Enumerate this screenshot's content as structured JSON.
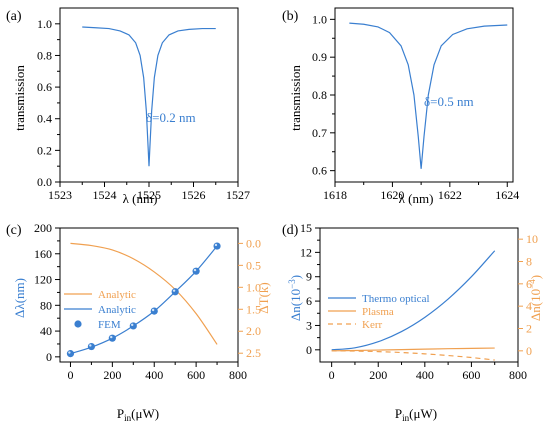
{
  "colors": {
    "blue": "#3a7fd0",
    "orange": "#f0a050",
    "axis": "#000000"
  },
  "chart_data": [
    {
      "type": "line",
      "panel": "(a)",
      "annotation": "δ=0.2 nm",
      "xlabel": "λ (nm)",
      "ylabel": "transmission",
      "xlim": [
        1523,
        1527
      ],
      "ylim": [
        0.0,
        1.1
      ],
      "xticks": [
        1523,
        1524,
        1525,
        1526,
        1527
      ],
      "yticks": [
        0.0,
        0.2,
        0.4,
        0.6,
        0.8,
        1.0
      ],
      "yticklabels": [
        "0.0",
        "0.2",
        "0.4",
        "0.6",
        "0.8",
        "1.0"
      ],
      "series": [
        {
          "color": "#3a7fd0",
          "x": [
            1523.5,
            1523.8,
            1524.1,
            1524.35,
            1524.55,
            1524.7,
            1524.8,
            1524.88,
            1524.94,
            1524.98,
            1525.0,
            1525.02,
            1525.06,
            1525.12,
            1525.2,
            1525.3,
            1525.45,
            1525.65,
            1525.9,
            1526.2,
            1526.5
          ],
          "y": [
            0.98,
            0.975,
            0.97,
            0.955,
            0.93,
            0.88,
            0.8,
            0.66,
            0.45,
            0.22,
            0.1,
            0.22,
            0.45,
            0.66,
            0.8,
            0.88,
            0.93,
            0.955,
            0.965,
            0.97,
            0.97
          ]
        }
      ]
    },
    {
      "type": "line",
      "panel": "(b)",
      "annotation": "δ=0.5 nm",
      "xlabel": "λ (nm)",
      "ylabel": "transmission",
      "xlim": [
        1618,
        1624.2
      ],
      "ylim": [
        0.57,
        1.03
      ],
      "xticks": [
        1618,
        1620,
        1622,
        1624
      ],
      "yticks": [
        0.6,
        0.7,
        0.8,
        0.9,
        1.0
      ],
      "yticklabels": [
        "0.6",
        "0.7",
        "0.8",
        "0.9",
        "1.0"
      ],
      "series": [
        {
          "color": "#3a7fd0",
          "x": [
            1618.5,
            1619.0,
            1619.5,
            1619.9,
            1620.3,
            1620.55,
            1620.75,
            1620.9,
            1621.0,
            1621.1,
            1621.25,
            1621.45,
            1621.7,
            1622.1,
            1622.6,
            1623.2,
            1624.0
          ],
          "y": [
            0.99,
            0.987,
            0.98,
            0.965,
            0.93,
            0.88,
            0.8,
            0.69,
            0.605,
            0.69,
            0.8,
            0.88,
            0.93,
            0.96,
            0.975,
            0.982,
            0.985
          ]
        }
      ]
    },
    {
      "type": "line",
      "panel": "(c)",
      "xlabel_main": "P",
      "xlabel_sub": "in",
      "xlabel_rest": "(μW)",
      "ylabel": "Δλ(nm)",
      "ylabel_right": "ΔT(k)",
      "xlim": [
        -50,
        800
      ],
      "ylim": [
        -8,
        200
      ],
      "ylim_right": [
        2.7,
        -0.35
      ],
      "xticks": [
        0,
        200,
        400,
        600,
        800
      ],
      "yticks": [
        0,
        40,
        80,
        120,
        160,
        200
      ],
      "yticks_right": [
        0.0,
        0.5,
        1.0,
        1.5,
        2.0,
        2.5
      ],
      "yticklabels_right": [
        "0.0",
        "0.5",
        "1.0",
        "1.5",
        "2.0",
        "2.5"
      ],
      "legend": [
        "Analytic",
        "Analytic",
        "FEM"
      ],
      "series": [
        {
          "name": "Analytic",
          "axis": "right",
          "color": "#f0a050",
          "x": [
            0,
            100,
            200,
            300,
            400,
            500,
            600,
            700
          ],
          "y": [
            0.0,
            0.05,
            0.15,
            0.35,
            0.65,
            1.05,
            1.6,
            2.3
          ]
        },
        {
          "name": "Analytic",
          "axis": "left",
          "color": "#3a7fd0",
          "x": [
            0,
            100,
            200,
            300,
            400,
            500,
            600,
            700
          ],
          "y": [
            5,
            15,
            29,
            48,
            71,
            101,
            133,
            172
          ]
        },
        {
          "name": "FEM",
          "axis": "left",
          "color": "#3a7fd0",
          "marker": "sphere",
          "x": [
            0,
            100,
            200,
            300,
            400,
            500,
            600,
            700
          ],
          "y": [
            5,
            16,
            29,
            48,
            71,
            101,
            133,
            172
          ]
        }
      ]
    },
    {
      "type": "line",
      "panel": "(d)",
      "xlabel_main": "P",
      "xlabel_sub": "in",
      "xlabel_rest": "(μW)",
      "ylabel_main": "Δn(10",
      "ylabel_sup": "−3",
      "ylabel_close": ")",
      "ylabel_right_main": "Δn(10",
      "ylabel_right_sup": "−4",
      "ylabel_right_close": ")",
      "xlim": [
        -50,
        800
      ],
      "ylim": [
        -1.5,
        15
      ],
      "ylim_right": [
        -1.0,
        11.0
      ],
      "xticks": [
        0,
        200,
        400,
        600,
        800
      ],
      "yticks": [
        0,
        3,
        6,
        9,
        12,
        15
      ],
      "yticks_right": [
        0,
        2,
        4,
        6,
        8,
        10
      ],
      "legend": [
        "Thermo optical",
        "Plasma",
        "Kerr"
      ],
      "series": [
        {
          "name": "Thermo optical",
          "axis": "left",
          "color": "#3a7fd0",
          "x": [
            0,
            100,
            200,
            300,
            400,
            500,
            600,
            700
          ],
          "y": [
            0.0,
            0.25,
            1.0,
            2.25,
            4.0,
            6.25,
            9.0,
            12.2
          ]
        },
        {
          "name": "Plasma",
          "axis": "right",
          "color": "#f0a050",
          "x": [
            0,
            100,
            200,
            300,
            400,
            500,
            600,
            700
          ],
          "y": [
            0.0,
            0.03,
            0.07,
            0.11,
            0.15,
            0.19,
            0.22,
            0.25
          ]
        },
        {
          "name": "Kerr",
          "axis": "right",
          "color": "#f0a050",
          "dash": true,
          "x": [
            0,
            100,
            200,
            300,
            400,
            500,
            600,
            700
          ],
          "y": [
            0.0,
            -0.02,
            -0.07,
            -0.15,
            -0.27,
            -0.42,
            -0.6,
            -0.82
          ]
        }
      ]
    }
  ]
}
